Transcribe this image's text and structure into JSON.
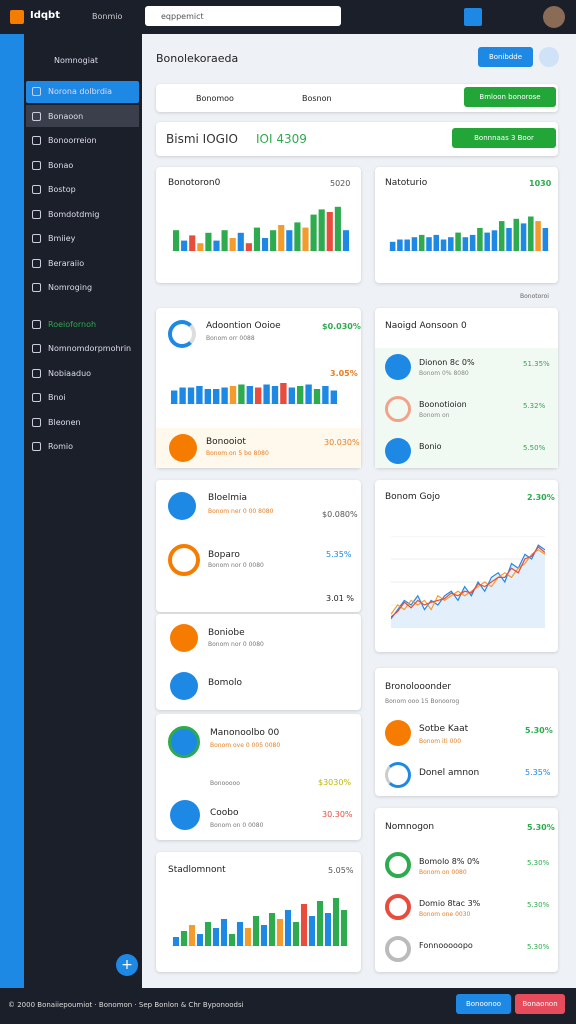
{
  "topbar": {
    "logo": "Idqbt",
    "nav": "Bonmio",
    "search": "eqppemict"
  },
  "sidebar": {
    "header": "Nomnogiat",
    "items": [
      "Norona dolbrdia",
      "Bonaoon",
      "Bonoorreion",
      "Bonao",
      "Bostop",
      "Bomdotdmig",
      "Bmiiey",
      "Beraraiio",
      "Nomroging",
      "Roeiofornoh",
      "Nomnomdorpmohrin",
      "Nobiaaduo",
      "Bnoi",
      "Bleonen",
      "Romio"
    ]
  },
  "header": {
    "title": "Bonolekoraeda",
    "button": "Bonibdde"
  },
  "filter": {
    "label1": "Bonomoo",
    "label2": "Bosnon",
    "button": "Bmloon bonorose"
  },
  "banner": {
    "text": "Bismi IOGIO",
    "highlight": "IOI 4309",
    "button": "Bonnnaas 3 Boor"
  },
  "cards": {
    "a": {
      "title": "Bonotoron0",
      "value": "5020"
    },
    "b": {
      "title": "Natoturio",
      "value": "1030"
    },
    "note": "Bonotoroi",
    "c": {
      "title": "Adoontion Ooioe",
      "sub": "Bonom orr 0088",
      "value": "$0.030%",
      "chart_value": "3.05%",
      "alert_title": "Bonooiot",
      "alert_sub": "Bonom on 5 bo 8080",
      "alert_value": "30.030%"
    },
    "d": {
      "title": "Naoigd Aonsoon 0",
      "rows": [
        {
          "title": "Dionon 8c 0%",
          "sub": "Bonom 0% 8080",
          "value": "51.35%"
        },
        {
          "title": "Boonotioion",
          "sub": "Bonom on",
          "value": "5.32%"
        },
        {
          "title": "Bonio",
          "sub": "",
          "value": "5.50%"
        }
      ]
    },
    "e": {
      "title": "Bloelmia",
      "sub": "Bonom ner 0 00 8080",
      "value": "$0.080%",
      "row_title": "Boparo",
      "row_sub": "Bonom nor 0 0080",
      "row_value": "5.35%",
      "foot": "3.01 %"
    },
    "f": {
      "title": "Bonom Gojo",
      "value": "2.30%"
    },
    "g": {
      "rows": [
        {
          "title": "Boniobe",
          "sub": "Bonom nor 0 0080"
        },
        {
          "title": "Bomolo"
        }
      ]
    },
    "h": {
      "title": "Bronolooonder",
      "sub": "Bonom ooo 15 Bonoorog",
      "rows": [
        {
          "title": "Sotbe Kaat",
          "sub": "Bonom iti 000",
          "value": "5.30%"
        },
        {
          "title": "Donel amnon",
          "value": "5.35%"
        }
      ]
    },
    "i": {
      "title": "Manonoolbo 00",
      "sub": "Bonom ove 0 005 0080",
      "label": "Bonooooo",
      "value": "$3030%",
      "row_title": "Coobo",
      "row_sub": "Bonom on 0 0080",
      "row_value": "30.30%"
    },
    "j": {
      "title": "Nomnogon",
      "value": "5.30%",
      "rows": [
        {
          "title": "Bomolo 8% 0%",
          "sub": "Bonom on 0080",
          "value": "5.30%"
        },
        {
          "title": "Domio 8tac 3%",
          "sub": "Bonom one 0030",
          "value": "5.30%"
        },
        {
          "title": "Fonnooooopo",
          "value": "5.30%"
        }
      ]
    },
    "k": {
      "title": "Stadlomnont",
      "value": "5.05%"
    }
  },
  "charts": {
    "a": {
      "type": "bar",
      "ylim": [
        0,
        100
      ],
      "values": [
        40,
        20,
        30,
        15,
        35,
        20,
        40,
        25,
        35,
        15,
        45,
        25,
        40,
        50,
        40,
        55,
        45,
        70,
        80,
        75,
        85,
        40
      ],
      "colors": [
        "#2eaa4f",
        "#1e88e5",
        "#e74c3c",
        "#f39c2d",
        "#2eaa4f",
        "#1e88e5",
        "#2eaa4f",
        "#f39c2d",
        "#1e88e5",
        "#e74c3c",
        "#2eaa4f",
        "#1e88e5",
        "#2eaa4f",
        "#f39c2d",
        "#1e88e5",
        "#2eaa4f",
        "#f39c2d",
        "#2eaa4f",
        "#2eaa4f",
        "#e74c3c",
        "#2eaa4f",
        "#1e88e5"
      ]
    },
    "b": {
      "type": "bar",
      "ylim": [
        0,
        100
      ],
      "values": [
        20,
        25,
        25,
        30,
        35,
        30,
        35,
        25,
        30,
        40,
        30,
        35,
        50,
        40,
        45,
        65,
        50,
        70,
        60,
        75,
        65,
        50
      ],
      "colors": [
        "#1e88e5",
        "#1e88e5",
        "#1e88e5",
        "#1e88e5",
        "#2eaa4f",
        "#1e88e5",
        "#1e88e5",
        "#1e88e5",
        "#1e88e5",
        "#2eaa4f",
        "#1e88e5",
        "#1e88e5",
        "#2eaa4f",
        "#1e88e5",
        "#1e88e5",
        "#2eaa4f",
        "#1e88e5",
        "#2eaa4f",
        "#1e88e5",
        "#2eaa4f",
        "#f39c2d",
        "#1e88e5"
      ]
    },
    "c": {
      "type": "bar",
      "ylim": [
        0,
        100
      ],
      "values": [
        45,
        55,
        55,
        60,
        50,
        50,
        55,
        60,
        65,
        60,
        55,
        65,
        60,
        70,
        55,
        60,
        65,
        50,
        60,
        45
      ],
      "colors": [
        "#1e88e5",
        "#1e88e5",
        "#1e88e5",
        "#1e88e5",
        "#1e88e5",
        "#1e88e5",
        "#1e88e5",
        "#f39c2d",
        "#2eaa4f",
        "#1e88e5",
        "#e74c3c",
        "#1e88e5",
        "#1e88e5",
        "#e74c3c",
        "#1e88e5",
        "#2eaa4f",
        "#1e88e5",
        "#2eaa4f",
        "#1e88e5",
        "#1e88e5"
      ]
    },
    "f": {
      "type": "line",
      "ylim": [
        0,
        100
      ],
      "series": [
        {
          "color": "#1e88e5",
          "values": [
            10,
            20,
            30,
            25,
            35,
            20,
            30,
            25,
            35,
            40,
            30,
            45,
            35,
            50,
            40,
            55,
            60,
            50,
            70,
            65,
            80,
            75,
            90,
            85
          ]
        },
        {
          "color": "#f39c2d",
          "values": [
            15,
            25,
            20,
            30,
            25,
            30,
            20,
            35,
            30,
            35,
            40,
            35,
            40,
            45,
            50,
            45,
            55,
            60,
            55,
            65,
            70,
            80,
            85,
            80
          ]
        },
        {
          "color": "#e74c3c",
          "values": [
            12,
            18,
            28,
            22,
            30,
            25,
            28,
            30,
            32,
            38,
            35,
            40,
            38,
            48,
            45,
            50,
            55,
            55,
            65,
            60,
            75,
            78,
            88,
            82
          ]
        }
      ]
    },
    "k": {
      "type": "bar",
      "ylim": [
        0,
        100
      ],
      "values": [
        15,
        25,
        35,
        20,
        40,
        30,
        45,
        20,
        40,
        30,
        50,
        35,
        55,
        45,
        60,
        40,
        70,
        50,
        75,
        55,
        80,
        60
      ],
      "colors": [
        "#1e88e5",
        "#2eaa4f",
        "#f39c2d",
        "#1e88e5",
        "#2eaa4f",
        "#1e88e5",
        "#1e88e5",
        "#2eaa4f",
        "#1e88e5",
        "#f39c2d",
        "#2eaa4f",
        "#1e88e5",
        "#2eaa4f",
        "#f39c2d",
        "#1e88e5",
        "#2eaa4f",
        "#e74c3c",
        "#1e88e5",
        "#2eaa4f",
        "#1e88e5",
        "#2eaa4f",
        "#2eaa4f"
      ]
    }
  },
  "footer": {
    "text": "© 2000 Bonaiiepoumiot · Bonomon · Sep Bonlon & Chr Byponoodsi",
    "button1": "Bonoonoo",
    "button2": "Bonaonon"
  }
}
